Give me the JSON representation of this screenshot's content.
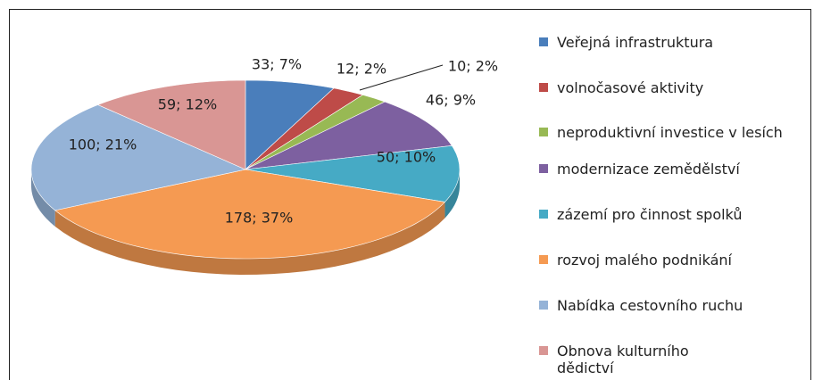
{
  "chart_data": {
    "type": "pie",
    "categories": [
      "Veřejná infrastruktura",
      "volnočasové aktivity",
      "neproduktivní investice v lesích",
      "modernizace zemědělství",
      "zázemí pro činnost spolků",
      "rozvoj malého podnikání",
      "Nabídka cestovního ruchu",
      "Obnova kulturního dědictví"
    ],
    "values": [
      33,
      12,
      10,
      46,
      50,
      178,
      100,
      59
    ],
    "value_labels": [
      "33; 7%",
      "12; 2%",
      "10; 2%",
      "46; 9%",
      "50; 10%",
      "178; 37%",
      "100; 21%",
      "59; 12%"
    ],
    "colors": [
      "#4a7ebb",
      "#be4b48",
      "#98b954",
      "#7d60a0",
      "#46aac5",
      "#f59a52",
      "#95b3d7",
      "#d99694"
    ],
    "legend": "right"
  }
}
